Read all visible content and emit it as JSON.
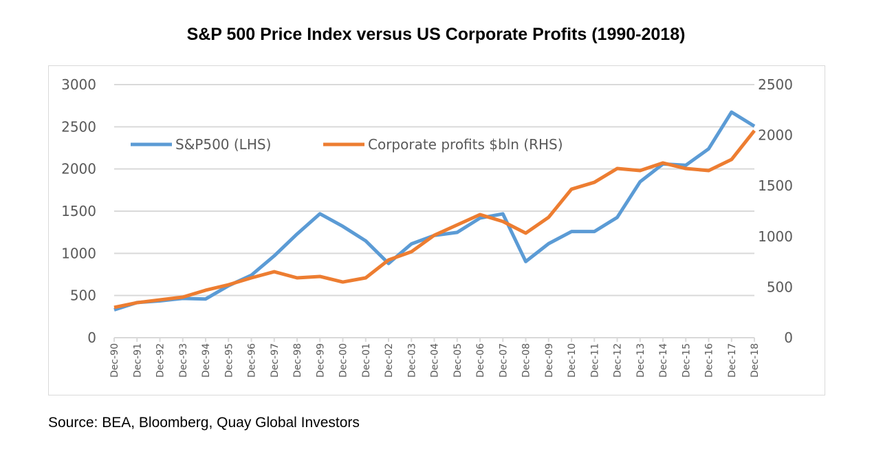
{
  "chart_data": {
    "type": "line",
    "title": "S&P 500 Price Index versus US Corporate Profits (1990-2018)",
    "source": "Source: BEA, Bloomberg, Quay Global Investors",
    "categories": [
      "Dec-90",
      "Dec-91",
      "Dec-92",
      "Dec-93",
      "Dec-94",
      "Dec-95",
      "Dec-96",
      "Dec-97",
      "Dec-98",
      "Dec-99",
      "Dec-00",
      "Dec-01",
      "Dec-02",
      "Dec-03",
      "Dec-04",
      "Dec-05",
      "Dec-06",
      "Dec-07",
      "Dec-08",
      "Dec-09",
      "Dec-10",
      "Dec-11",
      "Dec-12",
      "Dec-13",
      "Dec-14",
      "Dec-15",
      "Dec-16",
      "Dec-17",
      "Dec-18"
    ],
    "left_axis": {
      "ylim": [
        0,
        3000
      ],
      "ticks": [
        "0",
        "500",
        "1000",
        "1500",
        "2000",
        "2500",
        "3000"
      ]
    },
    "right_axis": {
      "ylim": [
        0,
        2500
      ],
      "ticks": [
        "0",
        "500",
        "1000",
        "1500",
        "2000",
        "2500"
      ]
    },
    "grid": true,
    "legend": "top-left",
    "series": [
      {
        "name": "S&P500 (LHS)",
        "axis": "left",
        "color": "#5b9bd5",
        "values": [
          330,
          417,
          436,
          466,
          459,
          616,
          741,
          970,
          1229,
          1469,
          1320,
          1148,
          880,
          1112,
          1212,
          1248,
          1418,
          1468,
          903,
          1115,
          1258,
          1258,
          1426,
          1848,
          2059,
          2044,
          2239,
          2674,
          2507
        ]
      },
      {
        "name": "Corporate profits $bln (RHS)",
        "axis": "right",
        "color": "#ed7d31",
        "values": [
          299,
          346,
          374,
          401,
          469,
          523,
          591,
          652,
          591,
          605,
          550,
          591,
          768,
          849,
          1012,
          1114,
          1216,
          1148,
          1033,
          1189,
          1467,
          1535,
          1671,
          1651,
          1726,
          1671,
          1651,
          1760,
          2045
        ]
      }
    ]
  }
}
